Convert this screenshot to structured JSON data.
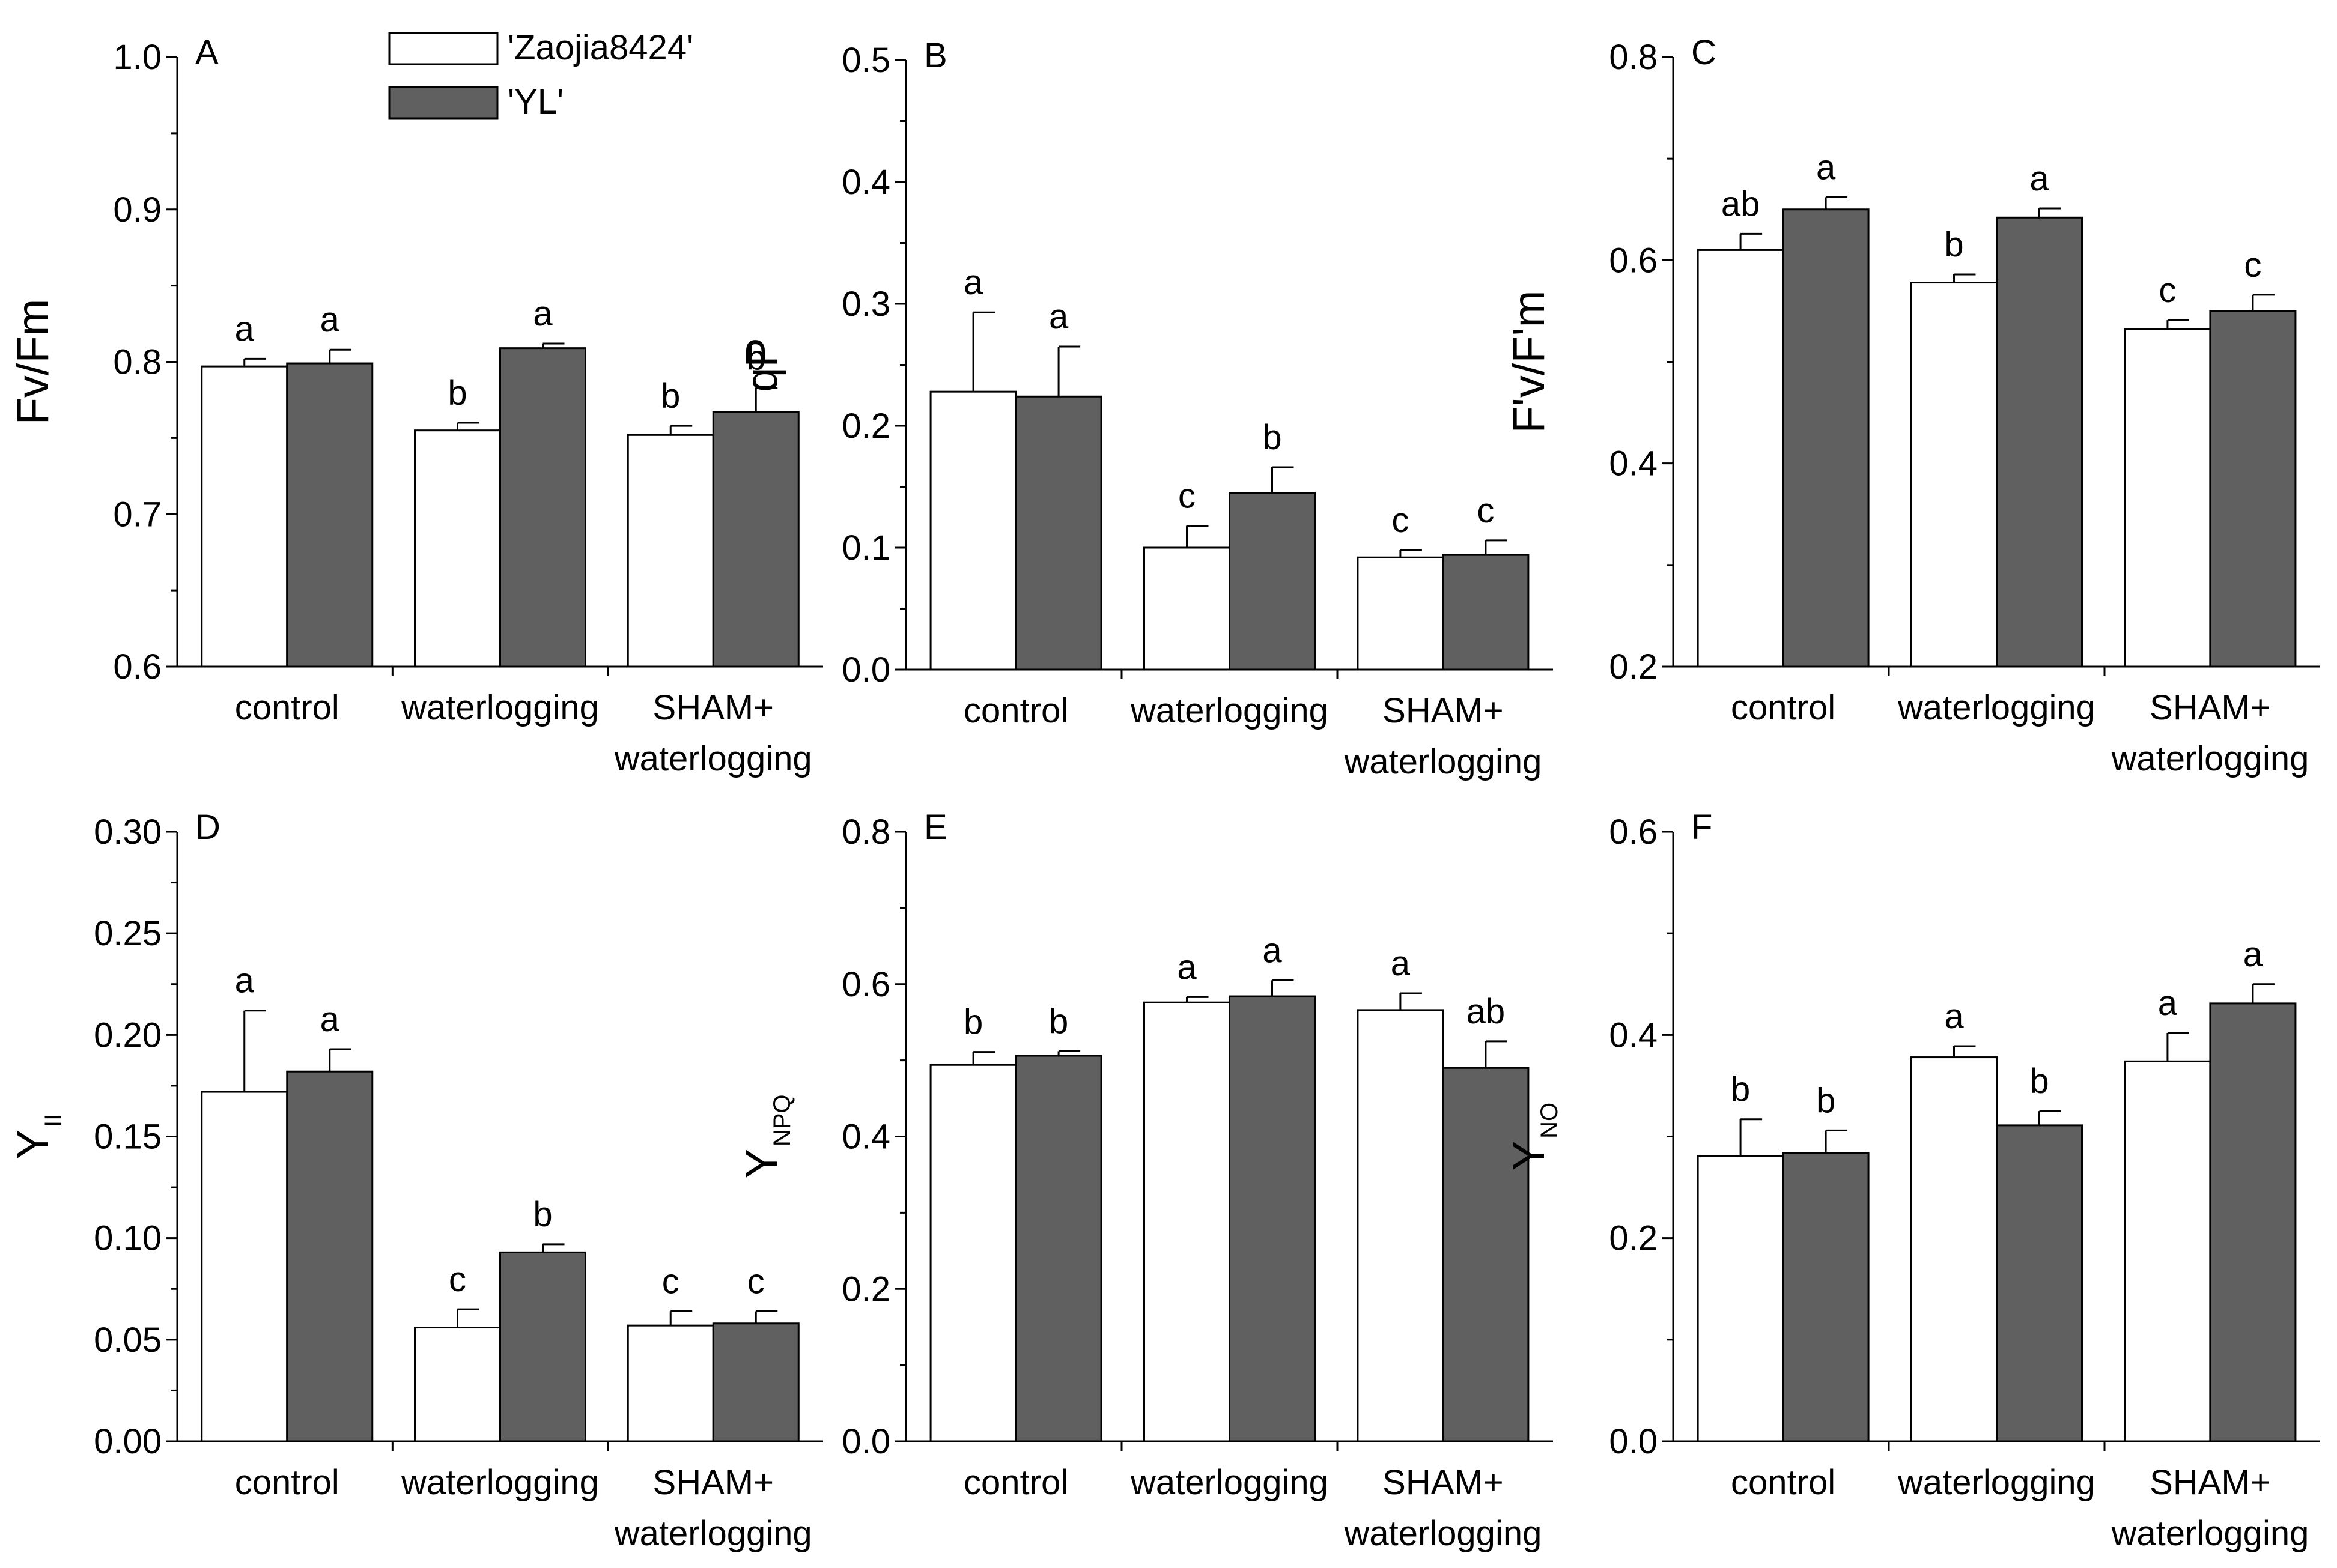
{
  "series_colors": [
    "#ffffff",
    "#606060"
  ],
  "legend": [
    {
      "label": "'Zaojia8424'",
      "color": "#ffffff"
    },
    {
      "label": "'YL'",
      "color": "#606060"
    }
  ],
  "chart_data": [
    {
      "type": "bar",
      "panel": "A",
      "ylabel": "Fv/Fm",
      "ylabel_sub": "",
      "ylim": [
        0.6,
        1.0
      ],
      "yticks": [
        "0.6",
        "0.7",
        "0.8",
        "0.9",
        "1.0"
      ],
      "categories": [
        [
          "control"
        ],
        [
          "waterlogging"
        ],
        [
          "SHAM+",
          "waterlogging"
        ]
      ],
      "series": [
        {
          "name": "'Zaojia8424'",
          "values": [
            0.797,
            0.755,
            0.752
          ],
          "errors": [
            0.005,
            0.005,
            0.006
          ],
          "letters": [
            "a",
            "b",
            "b"
          ]
        },
        {
          "name": "'YL'",
          "values": [
            0.799,
            0.809,
            0.767
          ],
          "errors": [
            0.009,
            0.003,
            0.016
          ],
          "letters": [
            "a",
            "a",
            "b"
          ]
        }
      ]
    },
    {
      "type": "bar",
      "panel": "B",
      "ylabel": "qP",
      "ylabel_sub": "",
      "ylim": [
        0.0,
        0.5
      ],
      "yticks": [
        "0.0",
        "0.1",
        "0.2",
        "0.3",
        "0.4",
        "0.5"
      ],
      "categories": [
        [
          "control"
        ],
        [
          "waterlogging"
        ],
        [
          "SHAM+",
          "waterlogging"
        ]
      ],
      "series": [
        {
          "name": "'Zaojia8424'",
          "values": [
            0.228,
            0.1,
            0.092
          ],
          "errors": [
            0.065,
            0.018,
            0.006
          ],
          "letters": [
            "a",
            "c",
            "c"
          ]
        },
        {
          "name": "'YL'",
          "values": [
            0.224,
            0.145,
            0.094
          ],
          "errors": [
            0.041,
            0.021,
            0.012
          ],
          "letters": [
            "a",
            "b",
            "c"
          ]
        }
      ]
    },
    {
      "type": "bar",
      "panel": "C",
      "ylabel": "F'v/F'm",
      "ylabel_sub": "",
      "ylim": [
        0.2,
        0.8
      ],
      "yticks": [
        "0.2",
        "0.4",
        "0.6",
        "0.8"
      ],
      "categories": [
        [
          "control"
        ],
        [
          "waterlogging"
        ],
        [
          "SHAM+",
          "waterlogging"
        ]
      ],
      "series": [
        {
          "name": "'Zaojia8424'",
          "values": [
            0.61,
            0.578,
            0.532
          ],
          "errors": [
            0.016,
            0.008,
            0.009
          ],
          "letters": [
            "ab",
            "b",
            "c"
          ]
        },
        {
          "name": "'YL'",
          "values": [
            0.65,
            0.642,
            0.55
          ],
          "errors": [
            0.012,
            0.009,
            0.016
          ],
          "letters": [
            "a",
            "a",
            "c"
          ]
        }
      ]
    },
    {
      "type": "bar",
      "panel": "D",
      "ylabel": "Y",
      "ylabel_sub": "II",
      "ylim": [
        0.0,
        0.3
      ],
      "yticks": [
        "0.00",
        "0.05",
        "0.10",
        "0.15",
        "0.20",
        "0.25",
        "0.30"
      ],
      "categories": [
        [
          "control"
        ],
        [
          "waterlogging"
        ],
        [
          "SHAM+",
          "waterlogging"
        ]
      ],
      "series": [
        {
          "name": "'Zaojia8424'",
          "values": [
            0.172,
            0.056,
            0.057
          ],
          "errors": [
            0.04,
            0.009,
            0.007
          ],
          "letters": [
            "a",
            "c",
            "c"
          ]
        },
        {
          "name": "'YL'",
          "values": [
            0.182,
            0.093,
            0.058
          ],
          "errors": [
            0.011,
            0.004,
            0.006
          ],
          "letters": [
            "a",
            "b",
            "c"
          ]
        }
      ]
    },
    {
      "type": "bar",
      "panel": "E",
      "ylabel": "Y",
      "ylabel_sub": "NPQ",
      "ylim": [
        0.0,
        0.8
      ],
      "yticks": [
        "0.0",
        "0.2",
        "0.4",
        "0.6",
        "0.8"
      ],
      "categories": [
        [
          "control"
        ],
        [
          "waterlogging"
        ],
        [
          "SHAM+",
          "waterlogging"
        ]
      ],
      "series": [
        {
          "name": "'Zaojia8424'",
          "values": [
            0.494,
            0.576,
            0.566
          ],
          "errors": [
            0.017,
            0.007,
            0.022
          ],
          "letters": [
            "b",
            "a",
            "a"
          ]
        },
        {
          "name": "'YL'",
          "values": [
            0.506,
            0.584,
            0.49
          ],
          "errors": [
            0.006,
            0.021,
            0.035
          ],
          "letters": [
            "b",
            "a",
            "ab"
          ]
        }
      ]
    },
    {
      "type": "bar",
      "panel": "F",
      "ylabel": "Y",
      "ylabel_sub": "NO",
      "ylim": [
        0.0,
        0.6
      ],
      "yticks": [
        "0.0",
        "0.2",
        "0.4",
        "0.6"
      ],
      "categories": [
        [
          "control"
        ],
        [
          "waterlogging"
        ],
        [
          "SHAM+",
          "waterlogging"
        ]
      ],
      "series": [
        {
          "name": "'Zaojia8424'",
          "values": [
            0.281,
            0.378,
            0.374
          ],
          "errors": [
            0.036,
            0.011,
            0.028
          ],
          "letters": [
            "b",
            "a",
            "a"
          ]
        },
        {
          "name": "'YL'",
          "values": [
            0.284,
            0.311,
            0.431
          ],
          "errors": [
            0.022,
            0.014,
            0.019
          ],
          "letters": [
            "b",
            "b",
            "a"
          ]
        }
      ]
    }
  ]
}
